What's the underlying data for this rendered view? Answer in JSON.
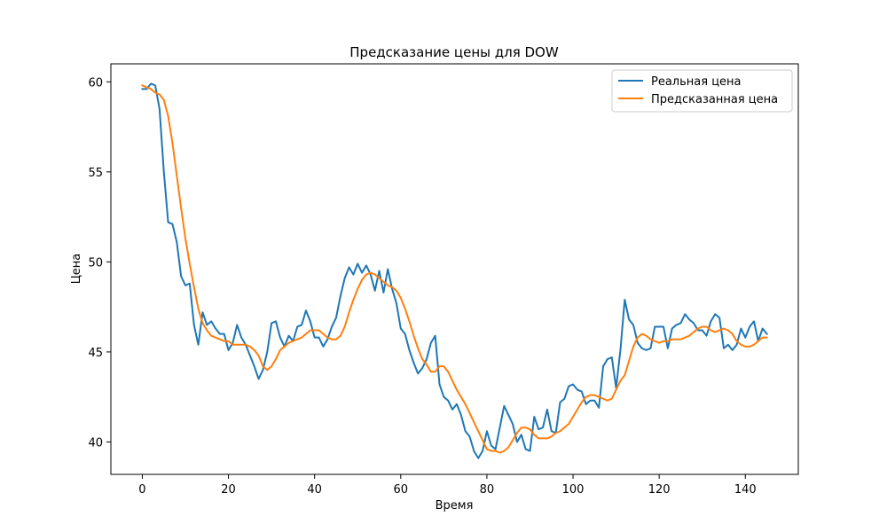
{
  "chart_data": {
    "type": "line",
    "title": "Предсказание цены для DOW",
    "xlabel": "Время",
    "ylabel": "Цена",
    "xlim": [
      -7.3,
      152.3
    ],
    "ylim": [
      38.2,
      61.0
    ],
    "xticks": [
      0,
      20,
      40,
      60,
      80,
      100,
      120,
      140
    ],
    "yticks": [
      40,
      45,
      50,
      55,
      60
    ],
    "grid": false,
    "legend": "top-right",
    "x": [
      0,
      1,
      2,
      3,
      4,
      5,
      6,
      7,
      8,
      9,
      10,
      11,
      12,
      13,
      14,
      15,
      16,
      17,
      18,
      19,
      20,
      21,
      22,
      23,
      24,
      25,
      26,
      27,
      28,
      29,
      30,
      31,
      32,
      33,
      34,
      35,
      36,
      37,
      38,
      39,
      40,
      41,
      42,
      43,
      44,
      45,
      46,
      47,
      48,
      49,
      50,
      51,
      52,
      53,
      54,
      55,
      56,
      57,
      58,
      59,
      60,
      61,
      62,
      63,
      64,
      65,
      66,
      67,
      68,
      69,
      70,
      71,
      72,
      73,
      74,
      75,
      76,
      77,
      78,
      79,
      80,
      81,
      82,
      83,
      84,
      85,
      86,
      87,
      88,
      89,
      90,
      91,
      92,
      93,
      94,
      95,
      96,
      97,
      98,
      99,
      100,
      101,
      102,
      103,
      104,
      105,
      106,
      107,
      108,
      109,
      110,
      111,
      112,
      113,
      114,
      115,
      116,
      117,
      118,
      119,
      120,
      121,
      122,
      123,
      124,
      125,
      126,
      127,
      128,
      129,
      130,
      131,
      132,
      133,
      134,
      135,
      136,
      137,
      138,
      139,
      140,
      141,
      142,
      143,
      144,
      145
    ],
    "series": [
      {
        "name": "Реальная цена",
        "color": "#1f77b4",
        "values": [
          59.6,
          59.6,
          59.9,
          59.8,
          58.5,
          55.0,
          52.2,
          52.1,
          51.1,
          49.2,
          48.7,
          48.8,
          46.5,
          45.4,
          47.2,
          46.5,
          46.7,
          46.3,
          46.0,
          46.0,
          45.1,
          45.5,
          46.5,
          45.8,
          45.4,
          44.8,
          44.2,
          43.5,
          44.0,
          45.0,
          46.6,
          46.7,
          45.8,
          45.3,
          45.9,
          45.6,
          46.4,
          46.5,
          47.3,
          46.7,
          45.8,
          45.8,
          45.3,
          45.7,
          46.4,
          46.9,
          48.1,
          49.1,
          49.7,
          49.3,
          49.9,
          49.4,
          49.8,
          49.3,
          48.4,
          49.5,
          48.3,
          49.6,
          48.5,
          47.7,
          46.3,
          46.0,
          45.1,
          44.4,
          43.8,
          44.1,
          44.6,
          45.5,
          45.9,
          43.2,
          42.5,
          42.3,
          41.8,
          42.1,
          41.5,
          40.6,
          40.3,
          39.5,
          39.1,
          39.5,
          40.6,
          39.8,
          39.6,
          40.8,
          42.0,
          41.5,
          41.0,
          40.0,
          40.4,
          39.6,
          39.5,
          41.4,
          40.7,
          40.8,
          41.8,
          40.6,
          40.5,
          42.2,
          42.4,
          43.1,
          43.2,
          42.9,
          42.8,
          42.1,
          42.3,
          42.3,
          41.9,
          44.2,
          44.6,
          44.7,
          43.0,
          45.1,
          47.9,
          46.8,
          46.5,
          45.5,
          45.2,
          45.1,
          45.2,
          46.4,
          46.4,
          46.4,
          45.2,
          46.3,
          46.5,
          46.6,
          47.1,
          46.8,
          46.6,
          46.2,
          46.2,
          45.9,
          46.7,
          47.1,
          46.9,
          45.2,
          45.4,
          45.1,
          45.4,
          46.3,
          45.8,
          46.4,
          46.7,
          45.6,
          46.3,
          46.0
        ]
      },
      {
        "name": "Предсказанная цена",
        "color": "#ff7f0e",
        "values": [
          59.8,
          59.7,
          59.6,
          59.4,
          59.3,
          59.0,
          58.1,
          56.6,
          54.8,
          53.0,
          51.3,
          49.9,
          48.6,
          47.4,
          46.6,
          46.2,
          45.9,
          45.8,
          45.7,
          45.6,
          45.6,
          45.4,
          45.4,
          45.4,
          45.4,
          45.3,
          45.1,
          44.8,
          44.2,
          44.0,
          44.2,
          44.6,
          45.1,
          45.3,
          45.5,
          45.6,
          45.7,
          45.8,
          46.0,
          46.2,
          46.2,
          46.2,
          46.0,
          45.8,
          45.7,
          45.7,
          45.9,
          46.4,
          47.2,
          47.9,
          48.5,
          49.0,
          49.3,
          49.4,
          49.3,
          49.1,
          48.9,
          48.7,
          48.6,
          48.4,
          48.0,
          47.4,
          46.7,
          45.9,
          45.2,
          44.6,
          44.3,
          43.9,
          43.9,
          44.2,
          44.2,
          43.9,
          43.4,
          42.9,
          42.5,
          42.1,
          41.6,
          41.1,
          40.6,
          40.1,
          39.6,
          39.5,
          39.5,
          39.4,
          39.5,
          39.7,
          40.1,
          40.5,
          40.8,
          40.8,
          40.7,
          40.4,
          40.2,
          40.2,
          40.2,
          40.3,
          40.5,
          40.6,
          40.8,
          41.0,
          41.4,
          41.8,
          42.2,
          42.5,
          42.6,
          42.6,
          42.5,
          42.4,
          42.3,
          42.4,
          42.9,
          43.4,
          43.7,
          44.5,
          45.3,
          45.8,
          46.0,
          45.9,
          45.7,
          45.6,
          45.5,
          45.6,
          45.6,
          45.7,
          45.7,
          45.7,
          45.8,
          45.9,
          46.1,
          46.3,
          46.4,
          46.4,
          46.2,
          46.1,
          46.2,
          46.3,
          46.2,
          46.0,
          45.6,
          45.4,
          45.3,
          45.3,
          45.4,
          45.6,
          45.8,
          45.8
        ]
      }
    ]
  }
}
